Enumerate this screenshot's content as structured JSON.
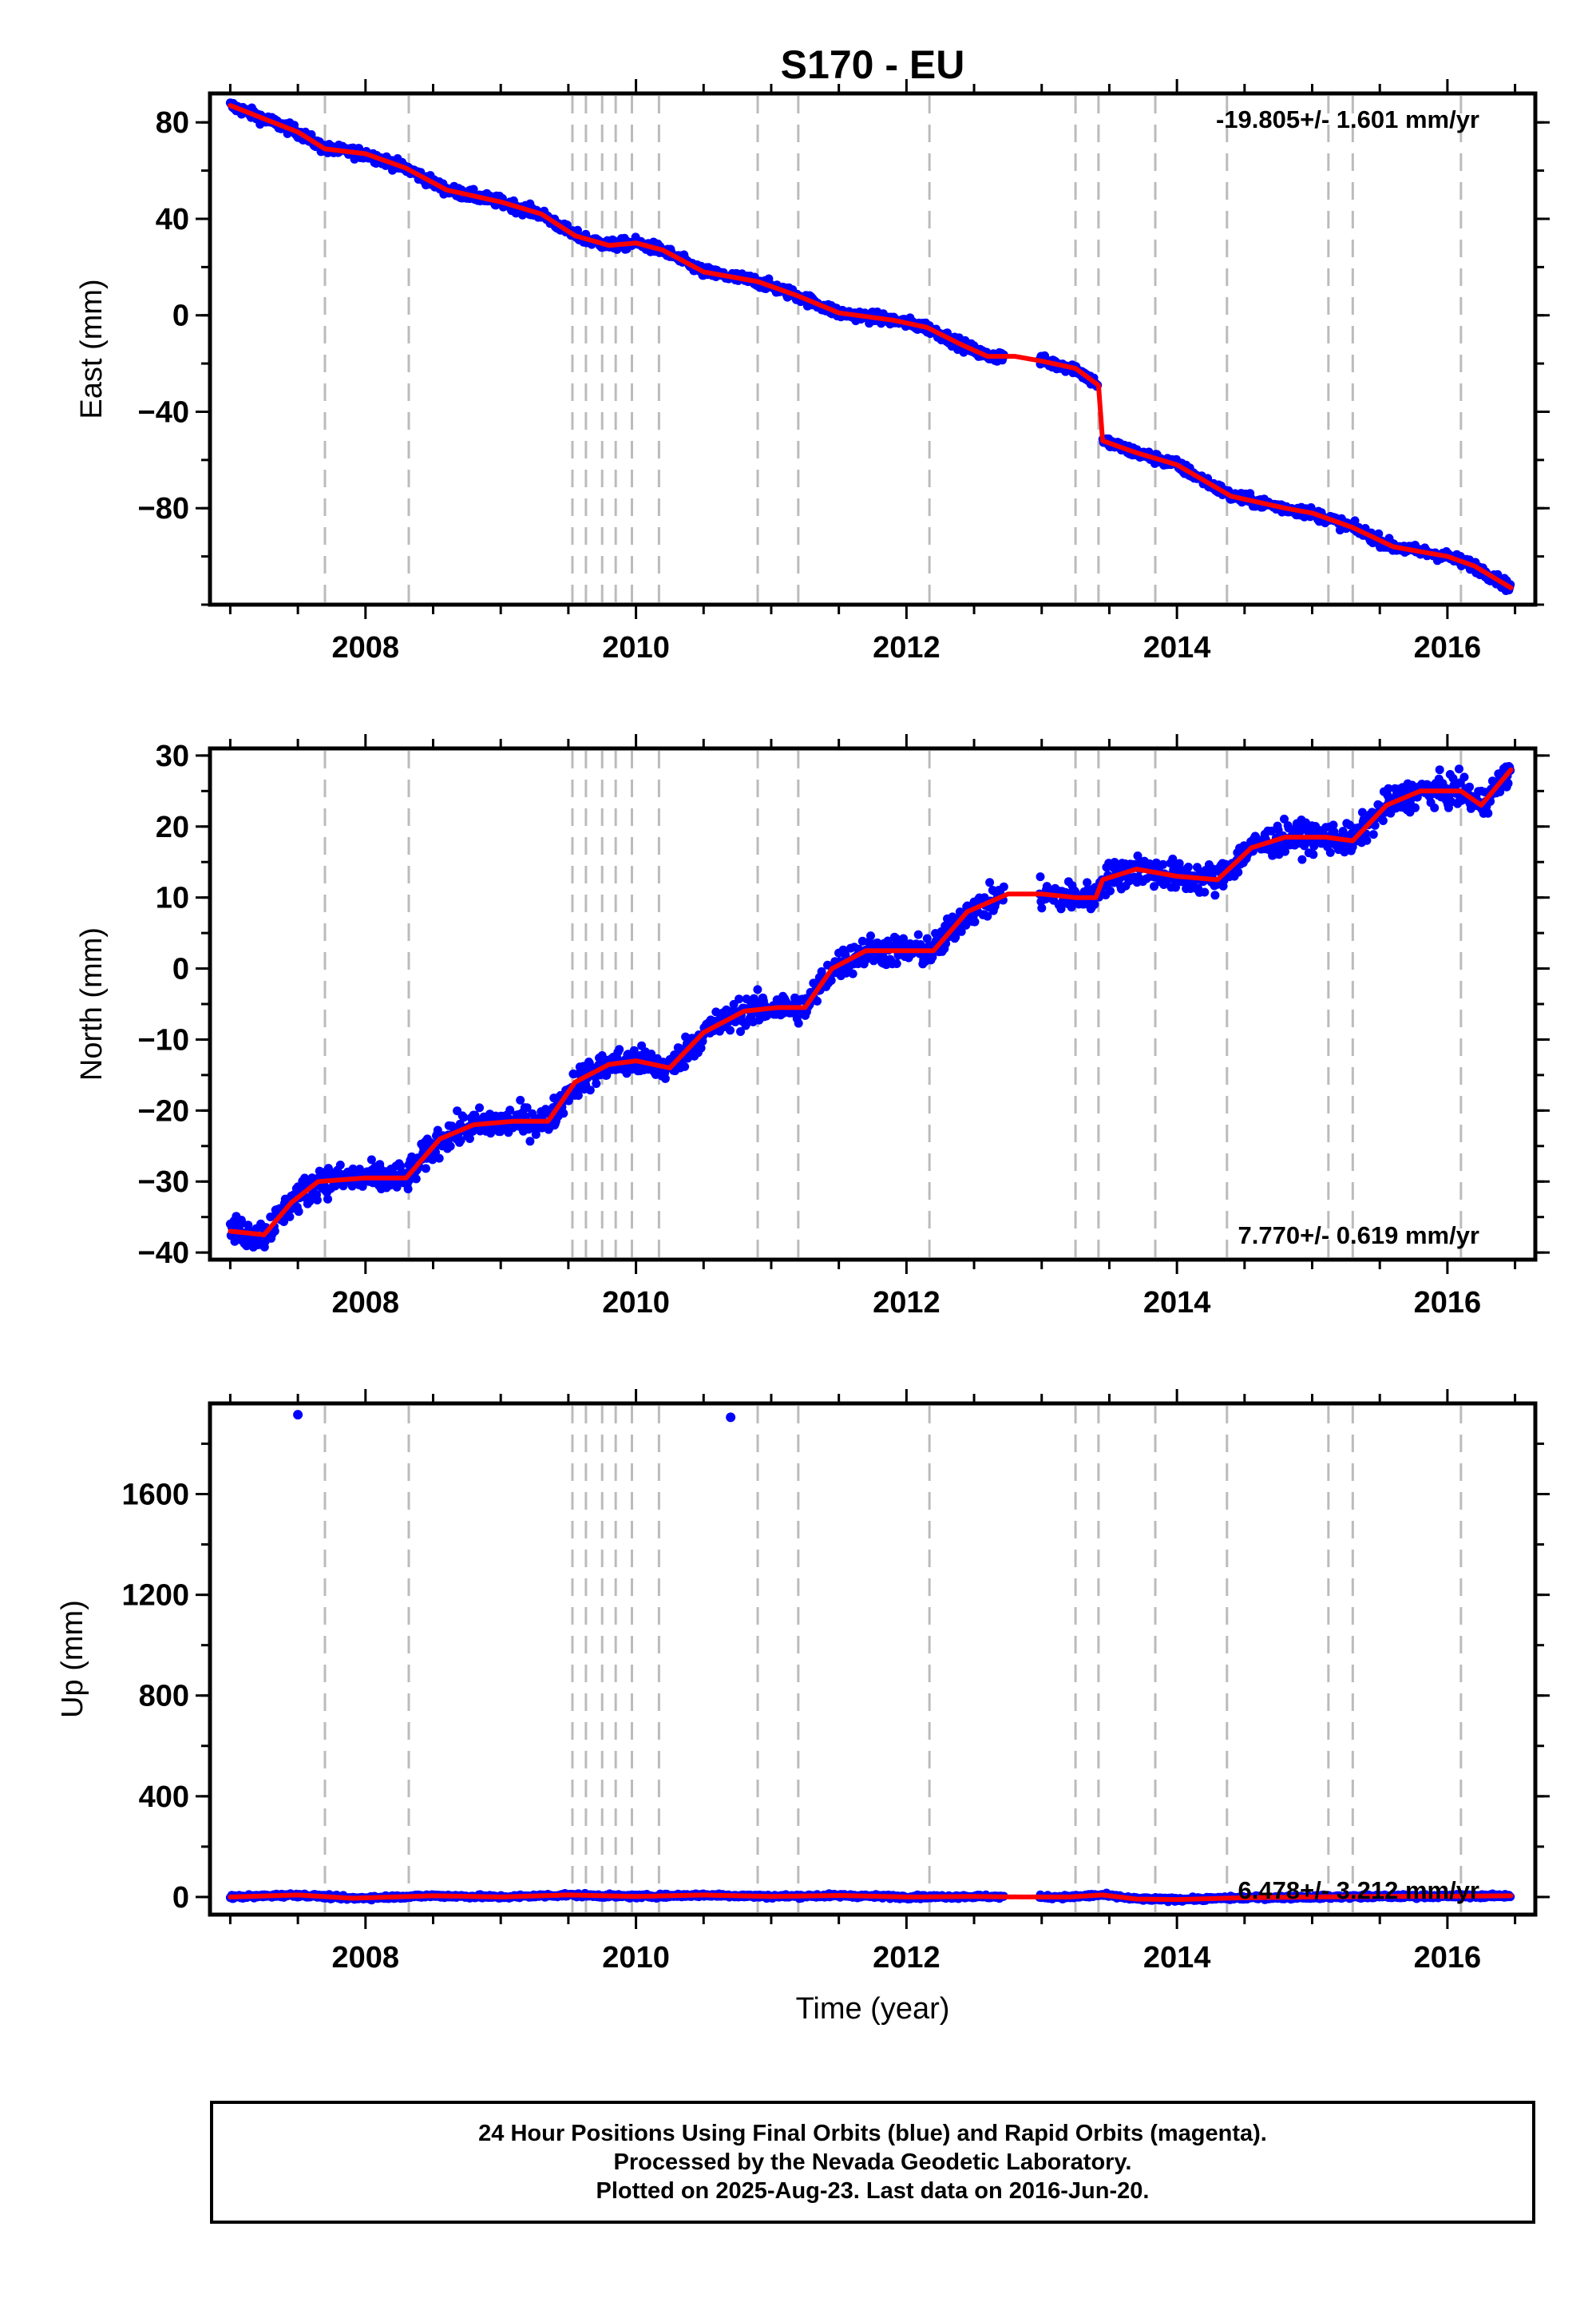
{
  "title": "S170 - EU",
  "colors": {
    "final_orbits": "#0000ff",
    "model": "#ff0000",
    "event_lines": "#bbbbbb",
    "axis": "#000000"
  },
  "chart_data": [
    {
      "type": "scatter",
      "ylabel": "East (mm)",
      "xlim": [
        2006.85,
        2016.65
      ],
      "ylim": [
        -120,
        92
      ],
      "xticks": [
        2008,
        2010,
        2012,
        2014,
        2016
      ],
      "yticks": [
        80,
        40,
        0,
        -40,
        -80
      ],
      "ytick_labels": [
        "80",
        "40",
        "0",
        "−40",
        "−80"
      ],
      "grid": false,
      "annotation": "-19.805+/- 1.601 mm/yr",
      "annotation_position": "top-right",
      "series": [
        {
          "values": [
            [
              2007.0,
              87
            ],
            [
              2007.5,
              76
            ],
            [
              2007.7,
              69
            ],
            [
              2008.0,
              67
            ],
            [
              2008.3,
              61
            ],
            [
              2008.6,
              52
            ],
            [
              2009.0,
              47
            ],
            [
              2009.3,
              42
            ],
            [
              2009.55,
              33
            ],
            [
              2009.8,
              29
            ],
            [
              2010.0,
              30
            ],
            [
              2010.2,
              27
            ],
            [
              2010.5,
              18
            ],
            [
              2010.9,
              14
            ],
            [
              2011.2,
              8
            ],
            [
              2011.5,
              1
            ],
            [
              2011.9,
              -2
            ],
            [
              2012.15,
              -5
            ],
            [
              2012.4,
              -12
            ],
            [
              2012.6,
              -17
            ],
            [
              2012.8,
              -17
            ],
            [
              2013.0,
              -19
            ],
            [
              2013.25,
              -22
            ],
            [
              2013.42,
              -29
            ],
            [
              2013.45,
              -52
            ],
            [
              2013.7,
              -57
            ],
            [
              2014.0,
              -62
            ],
            [
              2014.4,
              -75
            ],
            [
              2014.8,
              -80
            ],
            [
              2015.0,
              -82
            ],
            [
              2015.3,
              -88
            ],
            [
              2015.6,
              -96
            ],
            [
              2016.0,
              -100
            ],
            [
              2016.2,
              -104
            ],
            [
              2016.47,
              -113
            ]
          ]
        }
      ],
      "event_lines": [
        2007.7,
        2008.32,
        2009.53,
        2009.63,
        2009.75,
        2009.85,
        2009.97,
        2010.17,
        2010.9,
        2011.2,
        2012.17,
        2013.25,
        2013.42,
        2013.84,
        2014.37,
        2015.12,
        2015.3,
        2016.1
      ]
    },
    {
      "type": "scatter",
      "ylabel": "North (mm)",
      "xlim": [
        2006.85,
        2016.65
      ],
      "ylim": [
        -41,
        31
      ],
      "xticks": [
        2008,
        2010,
        2012,
        2014,
        2016
      ],
      "yticks": [
        30,
        20,
        10,
        0,
        -10,
        -20,
        -30,
        -40
      ],
      "ytick_labels": [
        "30",
        "20",
        "10",
        "0",
        "−10",
        "−20",
        "−30",
        "−40"
      ],
      "grid": false,
      "annotation": "7.770+/- 0.619 mm/yr",
      "annotation_position": "bottom-right",
      "series": [
        {
          "values": [
            [
              2007.0,
              -37
            ],
            [
              2007.25,
              -37.5
            ],
            [
              2007.45,
              -33
            ],
            [
              2007.65,
              -30
            ],
            [
              2008.0,
              -29.5
            ],
            [
              2008.3,
              -29.5
            ],
            [
              2008.55,
              -24
            ],
            [
              2008.8,
              -22
            ],
            [
              2009.1,
              -21.5
            ],
            [
              2009.35,
              -21.5
            ],
            [
              2009.55,
              -16
            ],
            [
              2009.8,
              -13.5
            ],
            [
              2010.0,
              -13
            ],
            [
              2010.25,
              -14
            ],
            [
              2010.5,
              -9
            ],
            [
              2010.8,
              -6
            ],
            [
              2011.05,
              -5.5
            ],
            [
              2011.25,
              -5.5
            ],
            [
              2011.45,
              0
            ],
            [
              2011.7,
              2.5
            ],
            [
              2012.0,
              2.5
            ],
            [
              2012.2,
              2.5
            ],
            [
              2012.45,
              8
            ],
            [
              2012.75,
              10.5
            ],
            [
              2013.0,
              10.5
            ],
            [
              2013.25,
              10
            ],
            [
              2013.4,
              10
            ],
            [
              2013.45,
              12.5
            ],
            [
              2013.7,
              14
            ],
            [
              2014.0,
              13
            ],
            [
              2014.3,
              12.5
            ],
            [
              2014.55,
              17
            ],
            [
              2014.8,
              18.5
            ],
            [
              2015.1,
              18.5
            ],
            [
              2015.3,
              18
            ],
            [
              2015.55,
              23
            ],
            [
              2015.8,
              25
            ],
            [
              2016.1,
              25
            ],
            [
              2016.25,
              23
            ],
            [
              2016.47,
              28
            ]
          ]
        }
      ],
      "event_lines": [
        2007.7,
        2008.32,
        2009.53,
        2009.63,
        2009.75,
        2009.85,
        2009.97,
        2010.17,
        2010.9,
        2011.2,
        2012.17,
        2013.25,
        2013.42,
        2013.84,
        2014.37,
        2015.12,
        2015.3,
        2016.1
      ]
    },
    {
      "type": "scatter",
      "ylabel": "Up (mm)",
      "xlabel": "Time (year)",
      "xlim": [
        2006.85,
        2016.65
      ],
      "ylim": [
        -70,
        1960
      ],
      "xticks": [
        2008,
        2010,
        2012,
        2014,
        2016
      ],
      "yticks": [
        1600,
        1200,
        800,
        400,
        0
      ],
      "ytick_labels": [
        "1600",
        "1200",
        "800",
        "400",
        "0"
      ],
      "grid": false,
      "annotation": "6.478+/- 3.212 mm/yr",
      "annotation_position": "bottom-right",
      "outliers": [
        [
          2007.5,
          1915
        ],
        [
          2010.7,
          1905
        ]
      ],
      "series": [
        {
          "values": [
            [
              2007.0,
              0
            ],
            [
              2007.5,
              8
            ],
            [
              2007.9,
              -5
            ],
            [
              2008.5,
              5
            ],
            [
              2009.0,
              0
            ],
            [
              2009.5,
              8
            ],
            [
              2010.0,
              2
            ],
            [
              2010.5,
              8
            ],
            [
              2011.0,
              2
            ],
            [
              2011.5,
              6
            ],
            [
              2012.0,
              0
            ],
            [
              2012.5,
              2
            ],
            [
              2012.85,
              0
            ],
            [
              2013.2,
              0
            ],
            [
              2013.45,
              8
            ],
            [
              2013.7,
              -8
            ],
            [
              2014.0,
              -10
            ],
            [
              2014.5,
              -3
            ],
            [
              2015.0,
              0
            ],
            [
              2015.5,
              2
            ],
            [
              2016.0,
              3
            ],
            [
              2016.47,
              5
            ]
          ]
        }
      ],
      "event_lines": [
        2007.7,
        2008.32,
        2009.53,
        2009.63,
        2009.75,
        2009.85,
        2009.97,
        2010.17,
        2010.9,
        2011.2,
        2012.17,
        2013.25,
        2013.42,
        2013.84,
        2014.37,
        2015.12,
        2015.3,
        2016.1
      ]
    }
  ],
  "footer": {
    "line1": "24 Hour Positions Using Final Orbits (blue) and Rapid Orbits (magenta).",
    "line2": "Processed by the Nevada Geodetic Laboratory.",
    "line3": "Plotted on 2025-Aug-23. Last data on 2016-Jun-20."
  }
}
